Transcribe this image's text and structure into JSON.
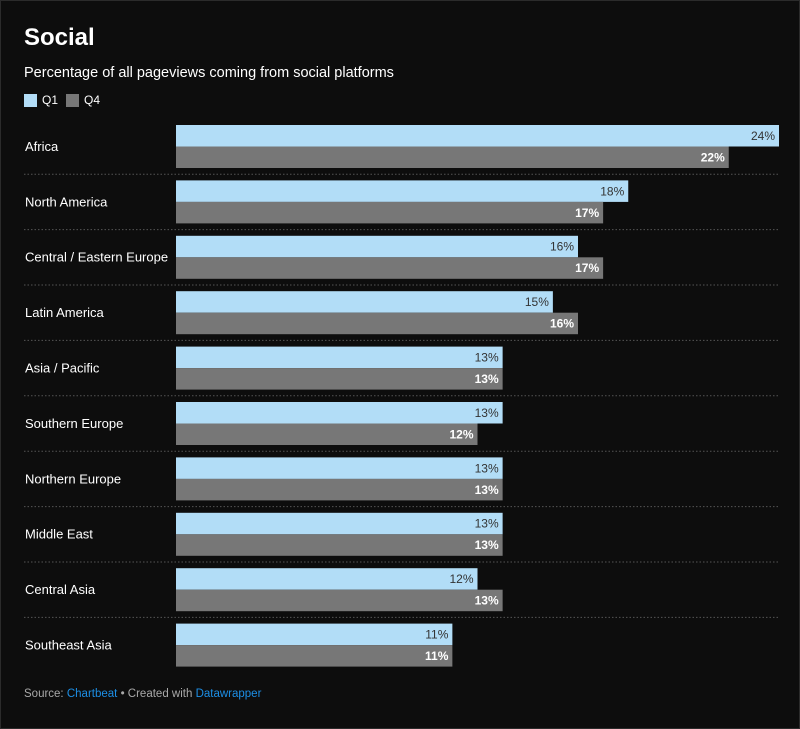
{
  "chart_data": {
    "type": "bar",
    "orientation": "horizontal",
    "title": "Social",
    "subtitle": "Percentage of all pageviews coming from social platforms",
    "categories": [
      "Africa",
      "North America",
      "Central / Eastern Europe",
      "Latin America",
      "Asia / Pacific",
      "Southern Europe",
      "Northern Europe",
      "Middle East",
      "Central Asia",
      "Southeast Asia"
    ],
    "series": [
      {
        "name": "Q1",
        "color": "#b2ddf7",
        "label_color": "#333333",
        "values": [
          24,
          18,
          16,
          15,
          13,
          13,
          13,
          13,
          12,
          11
        ]
      },
      {
        "name": "Q4",
        "color": "#777777",
        "label_color": "#ffffff",
        "values": [
          22,
          17,
          17,
          16,
          13,
          12,
          13,
          13,
          13,
          11
        ]
      }
    ],
    "value_suffix": "%",
    "xlim": [
      0,
      24
    ],
    "grid": false,
    "legend_position": "top-left"
  },
  "footer": {
    "source_label": "Source:",
    "source_name": "Chartbeat",
    "separator": "•",
    "created_with": "Created with",
    "tool_name": "Datawrapper"
  },
  "colors": {
    "background": "#0d0d0d",
    "divider": "#555555",
    "link": "#1d8fe6"
  }
}
